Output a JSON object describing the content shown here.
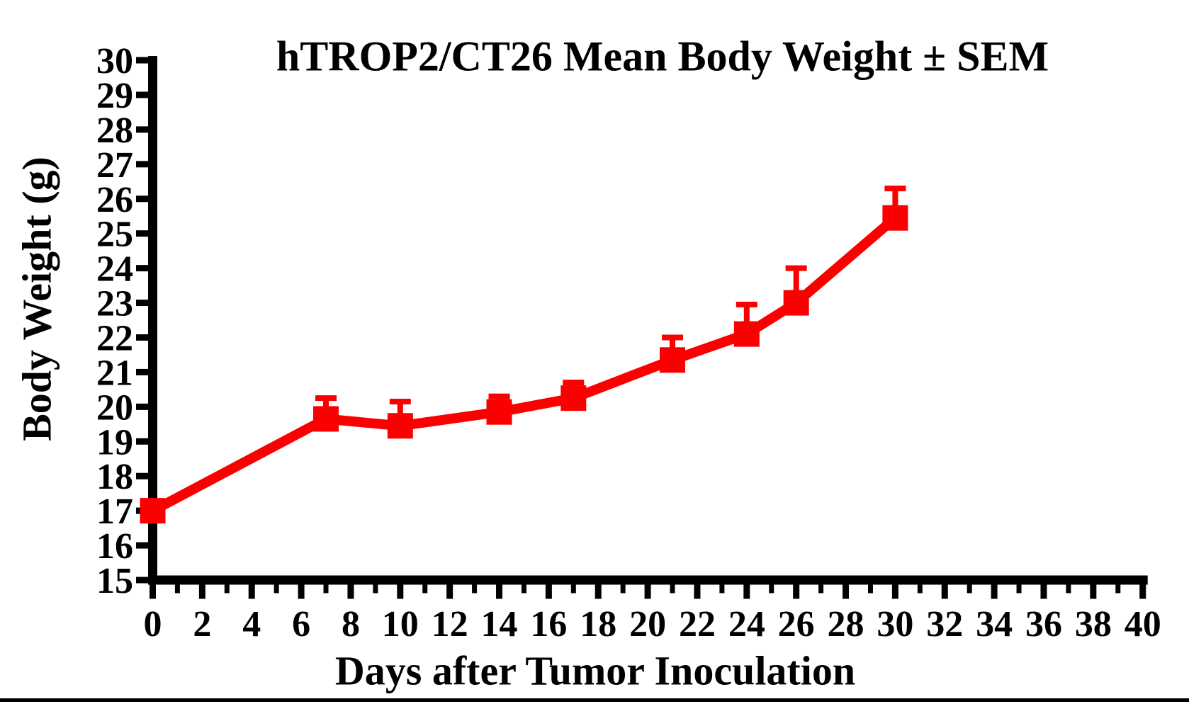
{
  "title": "hTROP2/CT26 Mean Body Weight ± SEM",
  "chart_data": {
    "type": "line",
    "title": "hTROP2/CT26 Mean Body Weight ± SEM",
    "xlabel": "Days after Tumor Inoculation",
    "ylabel": "Body Weight (g)",
    "xlim": [
      0,
      40
    ],
    "ylim": [
      15,
      30
    ],
    "x_major_tick_step": 2,
    "x_minor_tick_step": 1,
    "y_tick_step": 1,
    "grid": false,
    "legend_position": "none",
    "x_tick_labels": [
      "0",
      "2",
      "4",
      "6",
      "8",
      "10",
      "12",
      "14",
      "16",
      "18",
      "20",
      "22",
      "24",
      "26",
      "28",
      "30",
      "32",
      "34",
      "36",
      "38",
      "40"
    ],
    "y_tick_labels": [
      "15",
      "16",
      "17",
      "18",
      "19",
      "20",
      "21",
      "22",
      "23",
      "24",
      "25",
      "26",
      "27",
      "28",
      "29",
      "30"
    ],
    "series": [
      {
        "name": "hTROP2/CT26 mean body weight",
        "marker": "filled-square",
        "error_bars": "upper-SEM-only",
        "color": "#fa0000",
        "points": [
          {
            "day": 0,
            "mean": 17.0,
            "sem_upper": 0.0
          },
          {
            "day": 7,
            "mean": 19.65,
            "sem_upper": 0.6
          },
          {
            "day": 10,
            "mean": 19.45,
            "sem_upper": 0.7
          },
          {
            "day": 14,
            "mean": 19.85,
            "sem_upper": 0.45
          },
          {
            "day": 17,
            "mean": 20.25,
            "sem_upper": 0.45
          },
          {
            "day": 21,
            "mean": 21.35,
            "sem_upper": 0.65
          },
          {
            "day": 24,
            "mean": 22.1,
            "sem_upper": 0.85
          },
          {
            "day": 26,
            "mean": 23.0,
            "sem_upper": 1.0
          },
          {
            "day": 30,
            "mean": 25.45,
            "sem_upper": 0.85
          }
        ]
      }
    ]
  },
  "colors": {
    "series_red": "#fa0000",
    "axis_black": "#000000",
    "background": "#ffffff"
  }
}
